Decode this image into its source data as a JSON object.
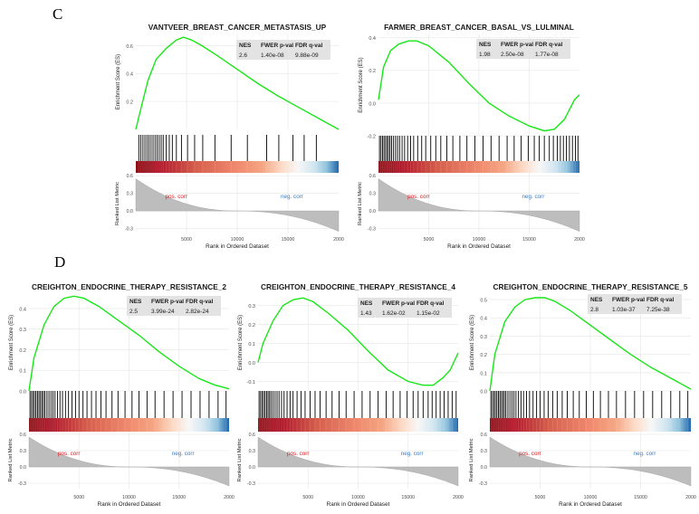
{
  "panel_labels": {
    "c": "C",
    "d": "D"
  },
  "colors": {
    "es_line": "#19e619",
    "hits": "#000000",
    "metric_fill": "#bdbdbd",
    "pos_label": "#e41a1c",
    "neg_label": "#3b7bbf",
    "table_bg": "#e3e3e3",
    "grid": "#ebebeb"
  },
  "common": {
    "es_axis_label": "Enrichment Score (ES)",
    "metric_axis_label": "Ranked List Metric",
    "x_axis_label": "Rank in Ordered Dataset",
    "pos_label": "pos. corr",
    "neg_label": "neg. corr",
    "table_headers": [
      "NES",
      "FWER p-val",
      "FDR q-val"
    ]
  },
  "chart_data": [
    {
      "type": "line",
      "panel": "C",
      "title": "VANTVEER_BREAST_CANCER_METASTASIS_UP",
      "stats": [
        "2.6",
        "1.40e-08",
        "9.88e-09"
      ],
      "x": [
        0,
        400,
        1200,
        2000,
        3000,
        4000,
        4700,
        5500,
        6500,
        8000,
        10000,
        12000,
        14000,
        16000,
        18000,
        20000
      ],
      "es": [
        0.0,
        0.12,
        0.35,
        0.5,
        0.58,
        0.64,
        0.66,
        0.64,
        0.6,
        0.53,
        0.43,
        0.33,
        0.24,
        0.16,
        0.08,
        0.0
      ],
      "ylim": [
        0,
        0.68
      ],
      "yticks": [
        "0.6",
        "0.4",
        "0.2"
      ],
      "hits": [
        300,
        500,
        700,
        900,
        1100,
        1300,
        1500,
        1700,
        1900,
        2100,
        2300,
        2500,
        2700,
        3000,
        3300,
        3600,
        4000,
        4500,
        5100,
        5800,
        6600,
        7800,
        9400,
        11000,
        12900,
        14100,
        15500,
        16600,
        17800
      ],
      "metric_ylim": [
        -0.4,
        0.65
      ],
      "metric_yticks": [
        "0.6",
        "0.3",
        "0.0",
        "-0.3"
      ],
      "xticks": [
        "5000",
        "10000",
        "15000",
        "2000"
      ]
    },
    {
      "type": "line",
      "panel": "C",
      "title": "FARMER_BREAST_CANCER_BASAL_VS_LULMINAL",
      "stats": [
        "1.98",
        "2.50e-08",
        "1.77e-08"
      ],
      "x": [
        0,
        500,
        1200,
        2000,
        3000,
        3800,
        5000,
        7000,
        9000,
        11000,
        13000,
        15000,
        16500,
        17500,
        18500,
        19500,
        20000
      ],
      "es": [
        0.02,
        0.22,
        0.32,
        0.36,
        0.38,
        0.38,
        0.35,
        0.25,
        0.12,
        0.0,
        -0.08,
        -0.14,
        -0.17,
        -0.16,
        -0.1,
        0.02,
        0.05
      ],
      "ylim": [
        -0.2,
        0.42
      ],
      "yticks": [
        "0.4",
        "0.2",
        "0.0",
        "-0.2"
      ],
      "hits": [
        100,
        250,
        400,
        550,
        700,
        850,
        1000,
        1150,
        1300,
        1500,
        1700,
        1900,
        2100,
        2350,
        2600,
        2900,
        3200,
        3500,
        3900,
        4300,
        4700,
        5200,
        5700,
        6200,
        6800,
        7400,
        8100,
        8800,
        9600,
        10400,
        11200,
        12000,
        12800,
        13500,
        14200,
        14900,
        15500,
        16000,
        16500,
        17000,
        17400,
        17800,
        18100,
        18400,
        18700,
        19000,
        19300,
        19600,
        19850
      ],
      "metric_ylim": [
        -0.4,
        0.65
      ],
      "metric_yticks": [
        "0.6",
        "0.3",
        "0.0",
        "-0.3"
      ],
      "xticks": [
        "5000",
        "10000",
        "15000",
        "2000"
      ]
    },
    {
      "type": "line",
      "panel": "D",
      "title": "CREIGHTON_ENDOCRINE_THERAPY_RESISTANCE_2",
      "stats": [
        "2.5",
        "3.99e-24",
        "2.82e-24"
      ],
      "x": [
        0,
        500,
        1500,
        2500,
        3500,
        4500,
        5500,
        7000,
        9000,
        11000,
        13000,
        15000,
        17000,
        18500,
        20000
      ],
      "es": [
        0.0,
        0.16,
        0.32,
        0.41,
        0.45,
        0.46,
        0.45,
        0.41,
        0.34,
        0.27,
        0.19,
        0.12,
        0.06,
        0.03,
        0.01
      ],
      "ylim": [
        0,
        0.47
      ],
      "yticks": [
        "0.4",
        "0.3",
        "0.2",
        "0.1",
        "0.0"
      ],
      "hits": [
        100,
        250,
        400,
        550,
        700,
        850,
        1000,
        1150,
        1300,
        1450,
        1600,
        1800,
        2000,
        2200,
        2400,
        2600,
        2850,
        3100,
        3350,
        3650,
        3950,
        4300,
        4650,
        5000,
        5400,
        5800,
        6250,
        6700,
        7200,
        7700,
        8300,
        8900,
        9600,
        10300,
        11000,
        11800,
        12600,
        13500,
        14400,
        15300,
        16200,
        17100,
        18000,
        18900,
        19700
      ],
      "metric_ylim": [
        -0.4,
        0.65
      ],
      "metric_yticks": [
        "0.6",
        "0.3",
        "0.0",
        "-0.3"
      ],
      "xticks": [
        "5000",
        "10000",
        "15000",
        "2000"
      ]
    },
    {
      "type": "line",
      "panel": "D",
      "title": "CREIGHTON_ENDOCRINE_THERAPY_RESISTANCE_4",
      "stats": [
        "1.43",
        "1.62e-02",
        "1.15e-02"
      ],
      "x": [
        0,
        500,
        1500,
        2500,
        3500,
        4500,
        5500,
        7000,
        9000,
        11000,
        13000,
        15000,
        16500,
        17500,
        18500,
        19200,
        20000
      ],
      "es": [
        0.0,
        0.1,
        0.22,
        0.3,
        0.33,
        0.34,
        0.32,
        0.26,
        0.17,
        0.06,
        -0.04,
        -0.1,
        -0.12,
        -0.12,
        -0.08,
        -0.04,
        0.05
      ],
      "ylim": [
        -0.15,
        0.36
      ],
      "yticks": [
        "0.3",
        "0.2",
        "0.1",
        "0.0",
        "-0.1"
      ],
      "hits": [
        100,
        250,
        400,
        550,
        700,
        850,
        1000,
        1150,
        1300,
        1500,
        1700,
        1900,
        2100,
        2350,
        2600,
        2900,
        3200,
        3500,
        3900,
        4300,
        4700,
        5200,
        5700,
        6200,
        6800,
        7400,
        8100,
        8800,
        9600,
        10400,
        11200,
        12000,
        12800,
        13500,
        14200,
        14900,
        15500,
        16000,
        16500,
        17000,
        17400,
        17800,
        18200,
        18600,
        19000,
        19400,
        19800
      ],
      "metric_ylim": [
        -0.4,
        0.65
      ],
      "metric_yticks": [
        "0.6",
        "0.3",
        "0.0",
        "-0.3"
      ],
      "xticks": [
        "5000",
        "10000",
        "15000",
        "2000"
      ]
    },
    {
      "type": "line",
      "panel": "D",
      "title": "CREIGHTON_ENDOCRINE_THERAPY_RESISTANCE_5",
      "stats": [
        "2.8",
        "1.03e-37",
        "7.25e-38"
      ],
      "x": [
        0,
        500,
        1500,
        2500,
        3500,
        4500,
        5500,
        6500,
        8000,
        10000,
        12000,
        14000,
        16000,
        18000,
        20000
      ],
      "es": [
        0.0,
        0.2,
        0.38,
        0.46,
        0.5,
        0.51,
        0.51,
        0.49,
        0.44,
        0.36,
        0.28,
        0.2,
        0.13,
        0.07,
        0.01
      ],
      "ylim": [
        0,
        0.53
      ],
      "yticks": [
        "0.5",
        "0.4",
        "0.3",
        "0.2",
        "0.1",
        "0.0"
      ],
      "hits": [
        100,
        250,
        400,
        550,
        700,
        850,
        1000,
        1150,
        1300,
        1450,
        1600,
        1800,
        2000,
        2200,
        2400,
        2600,
        2850,
        3100,
        3350,
        3650,
        3950,
        4300,
        4650,
        5000,
        5400,
        5800,
        6250,
        6700,
        7200,
        7700,
        8300,
        8900,
        9600,
        10300,
        11000,
        11800,
        12600,
        13500,
        14400,
        15300,
        16200,
        17100,
        18000,
        18900,
        19700
      ],
      "metric_ylim": [
        -0.4,
        0.65
      ],
      "metric_yticks": [
        "0.6",
        "0.3",
        "0.0",
        "-0.3"
      ],
      "xticks": [
        "5000",
        "10000",
        "15000",
        "2000"
      ]
    }
  ]
}
